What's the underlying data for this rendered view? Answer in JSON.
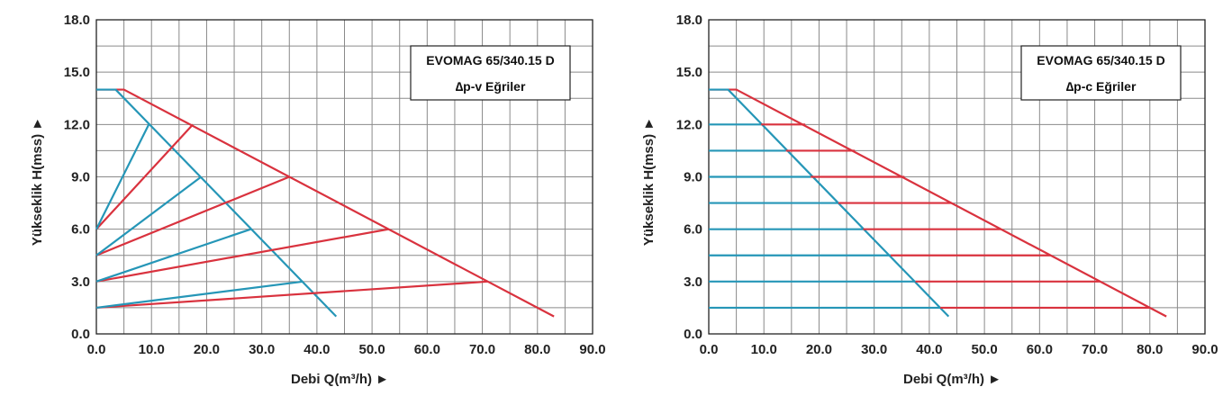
{
  "colors": {
    "red": "#d9323e",
    "blue": "#2596b7",
    "grid": "#8a8a8a",
    "axis": "#222222"
  },
  "chart_data": [
    {
      "type": "line",
      "title": "",
      "legend_box": [
        "EVOMAG 65/340.15 D",
        "∆p-v Eğriler"
      ],
      "xlabel": "Debi Q(m³/h) ►",
      "ylabel": "Yükseklik H(mss) ►",
      "xlim": [
        0,
        90
      ],
      "ylim": [
        0,
        18
      ],
      "x_ticks": [
        "0.0",
        "10.0",
        "20.0",
        "30.0",
        "40.0",
        "50.0",
        "60.0",
        "70.0",
        "80.0",
        "90.0"
      ],
      "y_ticks": [
        "0.0",
        "3.0",
        "6.0",
        "9.0",
        "12.0",
        "15.0",
        "18.0"
      ],
      "grid": true,
      "series": [
        {
          "color": "red",
          "points": [
            [
              0,
              14
            ],
            [
              5,
              14
            ],
            [
              83,
              1
            ]
          ]
        },
        {
          "color": "blue",
          "points": [
            [
              0,
              14
            ],
            [
              3.5,
              14
            ],
            [
              43.5,
              1
            ]
          ]
        },
        {
          "color": "red",
          "points": [
            [
              0,
              6
            ],
            [
              17.5,
              12
            ]
          ]
        },
        {
          "color": "red",
          "points": [
            [
              0,
              4.5
            ],
            [
              35,
              9
            ]
          ]
        },
        {
          "color": "red",
          "points": [
            [
              0,
              3
            ],
            [
              53,
              6
            ]
          ]
        },
        {
          "color": "red",
          "points": [
            [
              0,
              1.5
            ],
            [
              71,
              3
            ]
          ]
        },
        {
          "color": "blue",
          "points": [
            [
              0,
              6
            ],
            [
              9.5,
              12
            ]
          ]
        },
        {
          "color": "blue",
          "points": [
            [
              0,
              4.5
            ],
            [
              19,
              9
            ]
          ]
        },
        {
          "color": "blue",
          "points": [
            [
              0,
              3
            ],
            [
              28,
              6
            ]
          ]
        },
        {
          "color": "blue",
          "points": [
            [
              0,
              1.5
            ],
            [
              37.5,
              3
            ]
          ]
        }
      ]
    },
    {
      "type": "line",
      "title": "",
      "legend_box": [
        "EVOMAG 65/340.15 D",
        "∆p-c Eğriler"
      ],
      "xlabel": "Debi Q(m³/h) ►",
      "ylabel": "Yükseklik H(mss) ►",
      "xlim": [
        0,
        90
      ],
      "ylim": [
        0,
        18
      ],
      "x_ticks": [
        "0.0",
        "10.0",
        "20.0",
        "30.0",
        "40.0",
        "50.0",
        "60.0",
        "70.0",
        "80.0",
        "90.0"
      ],
      "y_ticks": [
        "0.0",
        "3.0",
        "6.0",
        "9.0",
        "12.0",
        "15.0",
        "18.0"
      ],
      "grid": true,
      "series": [
        {
          "color": "red",
          "points": [
            [
              0,
              14
            ],
            [
              5,
              14
            ],
            [
              83,
              1
            ]
          ]
        },
        {
          "color": "blue",
          "points": [
            [
              0,
              14
            ],
            [
              3.5,
              14
            ],
            [
              43.5,
              1
            ]
          ]
        },
        {
          "color": "blue",
          "points": [
            [
              0,
              12
            ],
            [
              9.5,
              12
            ]
          ]
        },
        {
          "color": "blue",
          "points": [
            [
              0,
              10.5
            ],
            [
              14,
              10.5
            ]
          ]
        },
        {
          "color": "blue",
          "points": [
            [
              0,
              9
            ],
            [
              18.5,
              9
            ]
          ]
        },
        {
          "color": "blue",
          "points": [
            [
              0,
              7.5
            ],
            [
              23.5,
              7.5
            ]
          ]
        },
        {
          "color": "blue",
          "points": [
            [
              0,
              6
            ],
            [
              28,
              6
            ]
          ]
        },
        {
          "color": "blue",
          "points": [
            [
              0,
              4.5
            ],
            [
              33,
              4.5
            ]
          ]
        },
        {
          "color": "blue",
          "points": [
            [
              0,
              3
            ],
            [
              37.5,
              3
            ]
          ]
        },
        {
          "color": "blue",
          "points": [
            [
              0,
              1.5
            ],
            [
              42,
              1.5
            ]
          ]
        },
        {
          "color": "red",
          "points": [
            [
              9.5,
              12
            ],
            [
              17.5,
              12
            ]
          ]
        },
        {
          "color": "red",
          "points": [
            [
              14,
              10.5
            ],
            [
              26.5,
              10.5
            ]
          ]
        },
        {
          "color": "red",
          "points": [
            [
              18.5,
              9
            ],
            [
              35.5,
              9
            ]
          ]
        },
        {
          "color": "red",
          "points": [
            [
              23.5,
              7.5
            ],
            [
              44,
              7.5
            ]
          ]
        },
        {
          "color": "red",
          "points": [
            [
              28,
              6
            ],
            [
              53,
              6
            ]
          ]
        },
        {
          "color": "red",
          "points": [
            [
              33,
              4.5
            ],
            [
              62,
              4.5
            ]
          ]
        },
        {
          "color": "red",
          "points": [
            [
              37.5,
              3
            ],
            [
              71,
              3
            ]
          ]
        },
        {
          "color": "red",
          "points": [
            [
              42,
              1.5
            ],
            [
              80,
              1.5
            ]
          ]
        }
      ]
    }
  ]
}
